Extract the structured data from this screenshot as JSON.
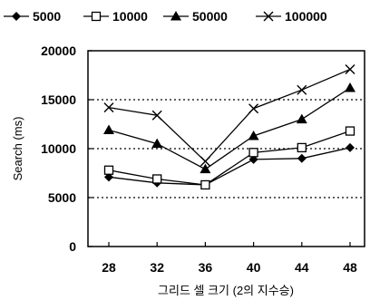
{
  "chart_data": {
    "type": "line",
    "xlabel": "그리드 셀 크기 (2의 지수승)",
    "ylabel": "Search (ms)",
    "categories": [
      "28",
      "32",
      "36",
      "40",
      "44",
      "48"
    ],
    "ylim": [
      0,
      20000
    ],
    "yticks": [
      "0",
      "5000",
      "10000",
      "15000",
      "20000"
    ],
    "grid": "dotted horizontal at 5000, 10000, 15000",
    "legend_position": "top",
    "series": [
      {
        "name": "5000",
        "marker": "filled-diamond",
        "values": [
          7100,
          6500,
          6300,
          8900,
          9000,
          10100
        ]
      },
      {
        "name": "10000",
        "marker": "open-square",
        "values": [
          7800,
          6900,
          6300,
          9600,
          10100,
          11800
        ]
      },
      {
        "name": "50000",
        "marker": "filled-triangle",
        "values": [
          11900,
          10500,
          7900,
          11300,
          13000,
          16200
        ]
      },
      {
        "name": "100000",
        "marker": "x-cross",
        "values": [
          14200,
          13400,
          8700,
          14100,
          16000,
          18100
        ]
      }
    ]
  }
}
